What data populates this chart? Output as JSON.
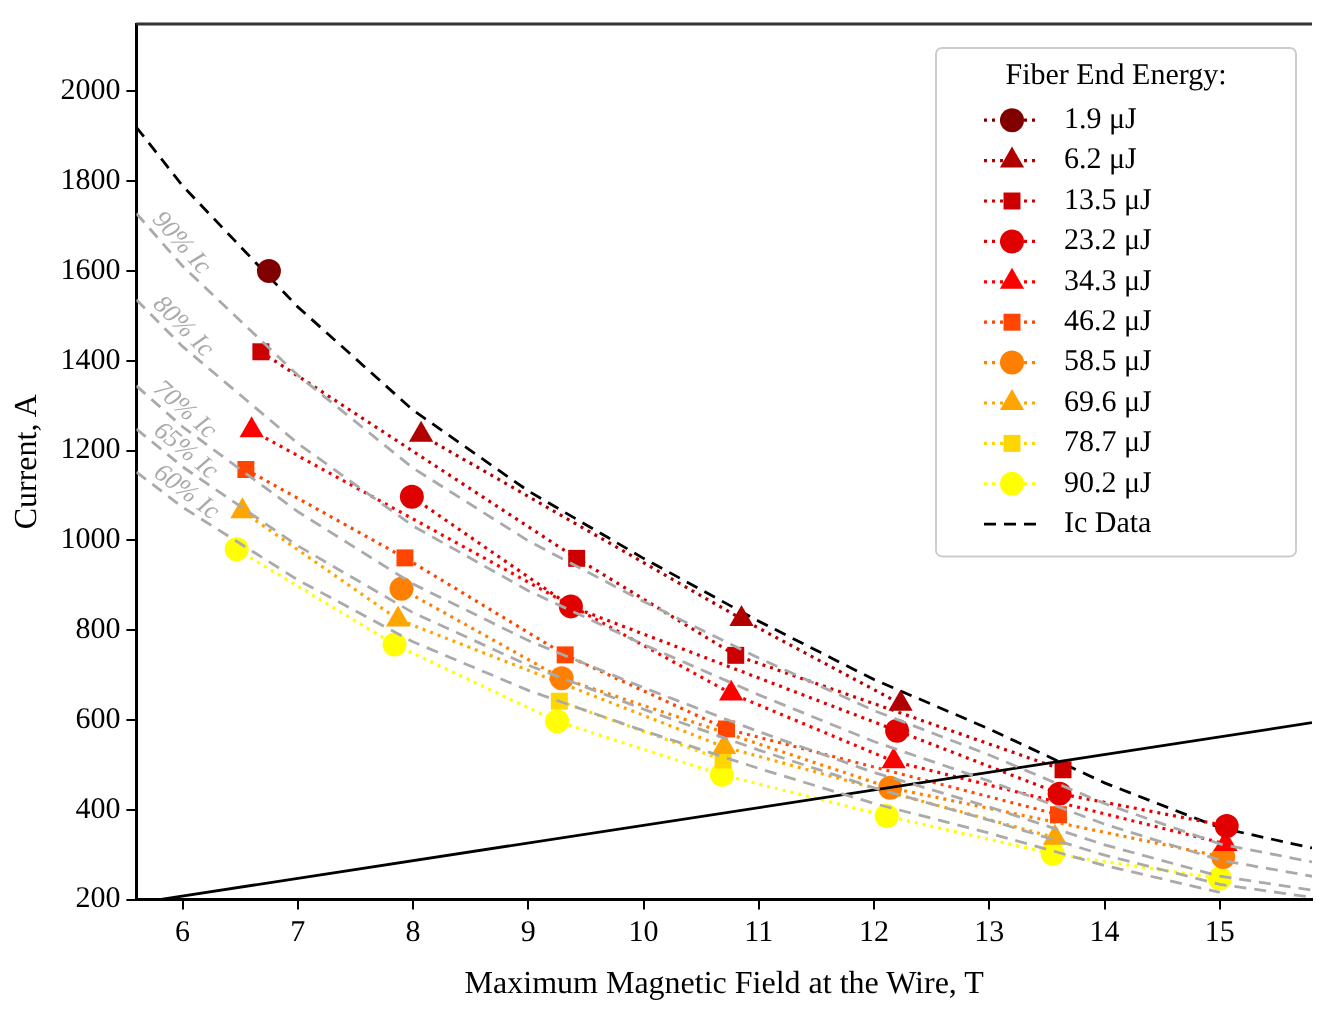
{
  "chart_data": {
    "type": "line",
    "xlabel": "Maximum Magnetic Field at the Wire, T",
    "ylabel": "Current, A",
    "legend_title": "Fiber End Energy:",
    "legend": "top right",
    "grid": false,
    "xlim": [
      5.6,
      15.8
    ],
    "xticks": [
      6,
      7,
      8,
      9,
      10,
      11,
      12,
      13,
      14,
      15
    ],
    "ylim": [
      200,
      2150
    ],
    "yticks": [
      200,
      400,
      600,
      800,
      1000,
      1200,
      1400,
      1600,
      1800,
      2000
    ],
    "series": [
      {
        "color": "#aaaaaa",
        "line_style": "dashed",
        "marker": "none",
        "x": [
          5.6,
          6,
          7,
          8,
          9,
          10,
          11,
          12,
          13,
          14,
          15,
          15.8
        ],
        "values": [
          1728,
          1611,
          1368,
          1161,
          999,
          864,
          738,
          621,
          522,
          414,
          324,
          284
        ]
      },
      {
        "color": "#aaaaaa",
        "line_style": "dashed",
        "marker": "none",
        "x": [
          5.6,
          6,
          7,
          8,
          9,
          10,
          11,
          12,
          13,
          14,
          15,
          15.8
        ],
        "values": [
          1536,
          1432,
          1216,
          1032,
          888,
          768,
          656,
          552,
          464,
          368,
          288,
          252
        ]
      },
      {
        "color": "#aaaaaa",
        "line_style": "dashed",
        "marker": "none",
        "x": [
          5.6,
          6,
          7,
          8,
          9,
          10,
          11,
          12,
          13,
          14,
          15,
          15.8
        ],
        "values": [
          1344,
          1253,
          1064,
          903,
          777,
          672,
          574,
          483,
          406,
          322,
          252,
          221
        ]
      },
      {
        "color": "#aaaaaa",
        "line_style": "dashed",
        "marker": "none",
        "x": [
          5.6,
          6,
          7,
          8,
          9,
          10,
          11,
          12,
          13,
          14,
          15,
          15.8
        ],
        "values": [
          1248,
          1164,
          988,
          839,
          722,
          624,
          533,
          449,
          377,
          299,
          234,
          205
        ]
      },
      {
        "color": "#aaaaaa",
        "line_style": "dashed",
        "marker": "none",
        "x": [
          5.6,
          6,
          7,
          8,
          9,
          10,
          11,
          12,
          13,
          14,
          15
        ],
        "values": [
          1152,
          1074,
          912,
          774,
          666,
          576,
          492,
          414,
          348,
          276,
          216
        ]
      },
      {
        "color": "#000000",
        "line_style": "solid",
        "marker": "none",
        "x": [
          5.8,
          15.8
        ],
        "values": [
          200,
          594
        ]
      },
      {
        "name": "1.9 μJ",
        "color": "#800000",
        "line_style": "dotted",
        "marker": "circle",
        "x": [
          6.75
        ],
        "values": [
          1600
        ]
      },
      {
        "name": "6.2 μJ",
        "color": "#b00000",
        "line_style": "dotted",
        "marker": "triangle",
        "x": [
          8.07,
          10.85,
          12.23
        ],
        "values": [
          1235,
          825,
          636
        ]
      },
      {
        "name": "13.5 μJ",
        "color": "#cc0000",
        "line_style": "dotted",
        "marker": "square",
        "x": [
          6.68,
          9.42,
          10.8,
          13.64
        ],
        "values": [
          1420,
          960,
          744,
          489
        ]
      },
      {
        "name": "23.2 μJ",
        "color": "#e00000",
        "line_style": "dotted",
        "marker": "circle",
        "x": [
          7.99,
          9.37,
          12.2,
          13.61,
          15.06
        ],
        "values": [
          1097,
          853,
          576,
          436,
          364
        ]
      },
      {
        "name": "34.3 μJ",
        "color": "#ff0000",
        "line_style": "dotted",
        "marker": "triangle",
        "x": [
          6.6,
          10.76,
          12.17,
          15.05
        ],
        "values": [
          1245,
          659,
          508,
          324
        ]
      },
      {
        "name": "46.2 μJ",
        "color": "#ff4500",
        "line_style": "dotted",
        "marker": "square",
        "x": [
          6.55,
          7.93,
          9.32,
          10.72,
          13.6
        ],
        "values": [
          1158,
          961,
          745,
          580,
          389
        ]
      },
      {
        "name": "58.5 μJ",
        "color": "#ff8000",
        "line_style": "dotted",
        "marker": "circle",
        "x": [
          7.9,
          9.29,
          12.14,
          15.03
        ],
        "values": [
          892,
          693,
          449,
          295
        ]
      },
      {
        "name": "69.6 μJ",
        "color": "#ffa500",
        "line_style": "dotted",
        "marker": "triangle",
        "x": [
          6.52,
          7.87,
          10.7,
          13.57
        ],
        "values": [
          1065,
          824,
          540,
          338
        ]
      },
      {
        "name": "78.7 μJ",
        "color": "#ffd700",
        "line_style": "dotted",
        "marker": "square",
        "x": [
          9.27,
          10.69
        ],
        "values": [
          642,
          511
        ]
      },
      {
        "name": "90.2 μJ",
        "color": "#ffff00",
        "line_style": "dotted",
        "marker": "circle",
        "x": [
          6.47,
          7.84,
          9.25,
          10.68,
          12.11,
          13.55,
          15.0
        ],
        "values": [
          980,
          768,
          597,
          478,
          386,
          302,
          247
        ]
      },
      {
        "name": "Ic Data",
        "color": "#000000",
        "line_style": "dashed",
        "marker": "none",
        "x": [
          5.6,
          6,
          7,
          8,
          9,
          10,
          11,
          12,
          13,
          14,
          15,
          15.8
        ],
        "values": [
          1920,
          1790,
          1520,
          1290,
          1110,
          960,
          820,
          690,
          580,
          460,
          360,
          315
        ]
      }
    ],
    "annotations": [
      "90% Ic",
      "80% Ic",
      "70% Ic",
      "65% Ic",
      "60% Ic"
    ]
  }
}
